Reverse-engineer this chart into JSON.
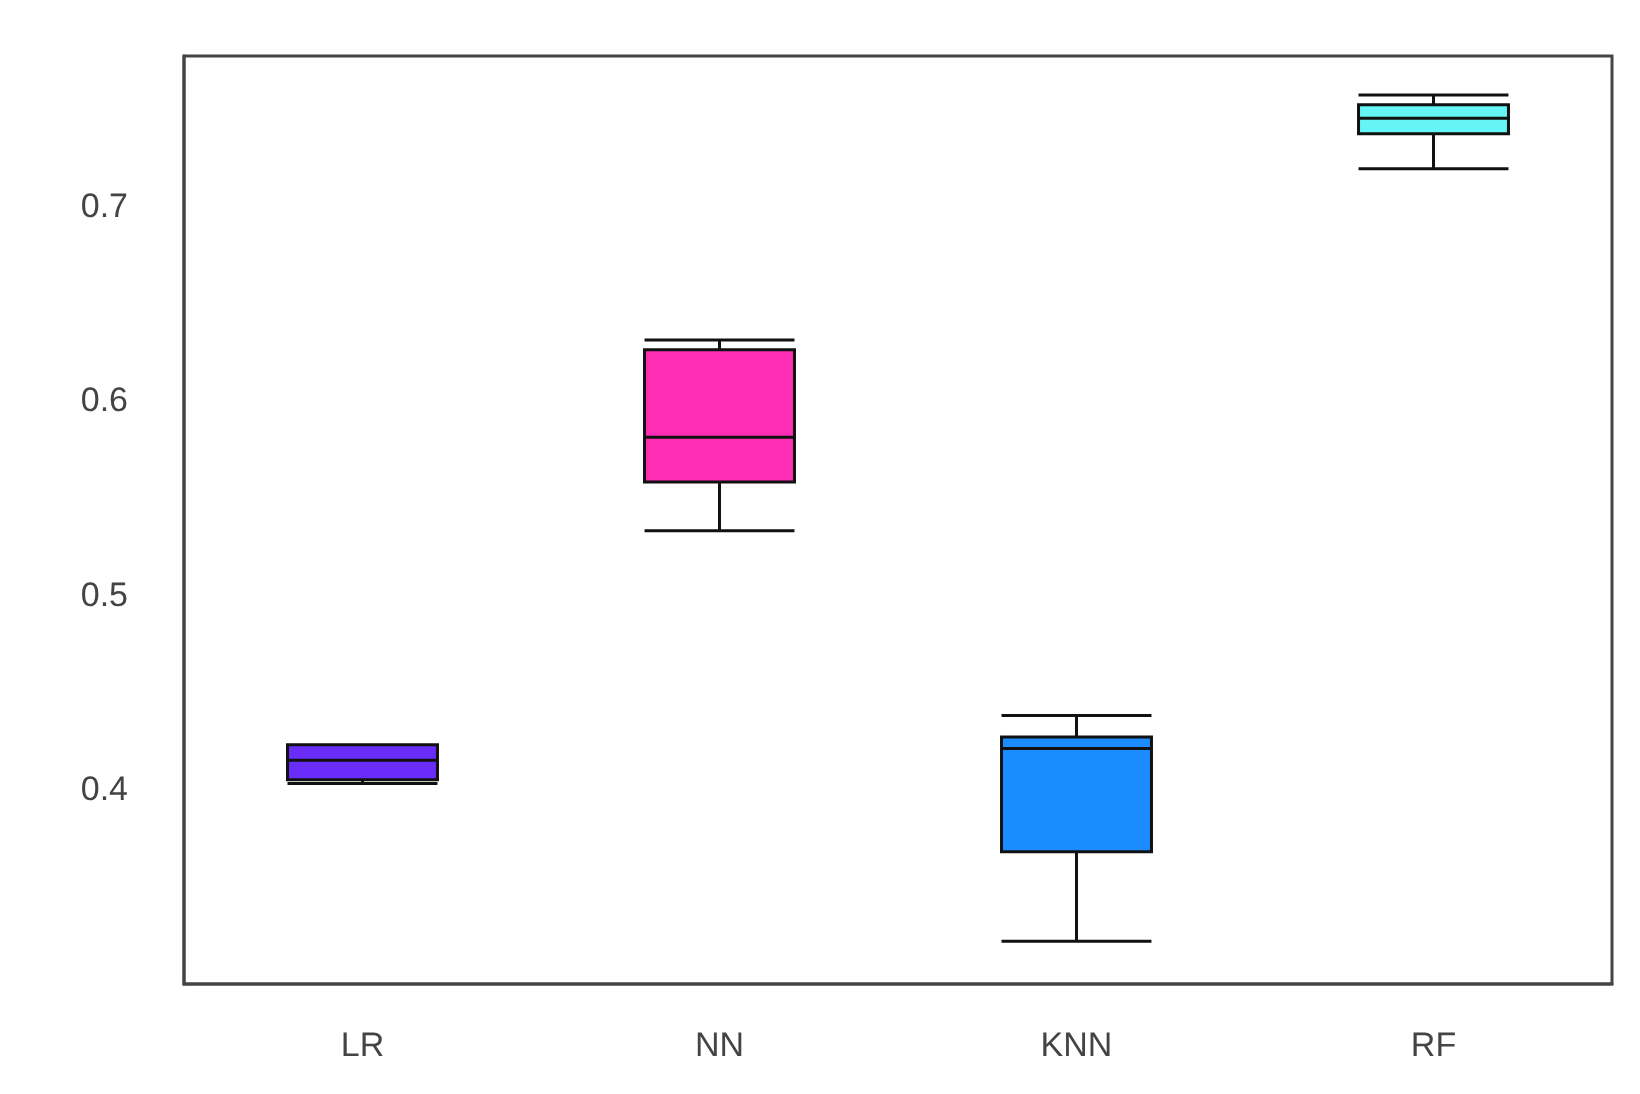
{
  "chart_data": {
    "type": "box",
    "categories": [
      "LR",
      "NN",
      "KNN",
      "RF"
    ],
    "boxes": [
      {
        "low": 0.403,
        "q1": 0.405,
        "median": 0.415,
        "q3": 0.423,
        "high": 0.423
      },
      {
        "low": 0.533,
        "q1": 0.558,
        "median": 0.581,
        "q3": 0.626,
        "high": 0.631
      },
      {
        "low": 0.322,
        "q1": 0.368,
        "median": 0.421,
        "q3": 0.427,
        "high": 0.438
      },
      {
        "low": 0.719,
        "q1": 0.737,
        "median": 0.745,
        "q3": 0.752,
        "high": 0.757
      }
    ],
    "colors": [
      "#6a2cf8",
      "#ff2db4",
      "#1a8cff",
      "#66f5f5"
    ],
    "ylim": [
      0.3,
      0.777
    ],
    "yticks": [
      0.4,
      0.5,
      0.6,
      0.7
    ],
    "grid": false
  }
}
